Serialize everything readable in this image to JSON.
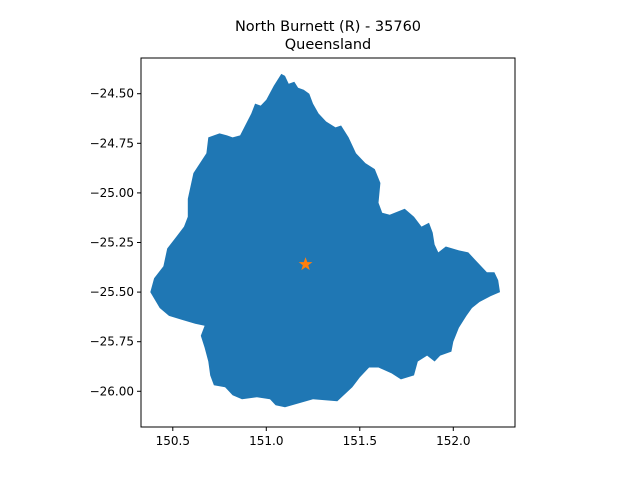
{
  "title": {
    "line1": "North Burnett (R) - 35760",
    "line2": "Queensland"
  },
  "colors": {
    "region_fill": "#1f77b4",
    "marker_fill": "#ff7f0e",
    "axis": "#000000",
    "background": "#ffffff"
  },
  "chart_data": {
    "type": "map",
    "region_name": "North Burnett (R)",
    "region_code": "35760",
    "state": "Queensland",
    "xlim": [
      150.33,
      152.33
    ],
    "ylim": [
      -26.18,
      -24.32
    ],
    "x_ticks": [
      {
        "value": 150.5,
        "label": "150.5"
      },
      {
        "value": 151.0,
        "label": "151.0"
      },
      {
        "value": 151.5,
        "label": "151.5"
      },
      {
        "value": 152.0,
        "label": "152.0"
      }
    ],
    "y_ticks": [
      {
        "value": -24.5,
        "label": "−24.50"
      },
      {
        "value": -24.75,
        "label": "−24.75"
      },
      {
        "value": -25.0,
        "label": "−25.00"
      },
      {
        "value": -25.25,
        "label": "−25.25"
      },
      {
        "value": -25.5,
        "label": "−25.50"
      },
      {
        "value": -25.75,
        "label": "−25.75"
      },
      {
        "value": -26.0,
        "label": "−26.00"
      }
    ],
    "marker": {
      "shape": "star",
      "lon": 151.21,
      "lat": -25.36
    },
    "boundary": [
      [
        151.08,
        -24.4
      ],
      [
        151.1,
        -24.41
      ],
      [
        151.12,
        -24.45
      ],
      [
        151.15,
        -24.44
      ],
      [
        151.17,
        -24.47
      ],
      [
        151.2,
        -24.48
      ],
      [
        151.23,
        -24.5
      ],
      [
        151.25,
        -24.55
      ],
      [
        151.28,
        -24.6
      ],
      [
        151.32,
        -24.64
      ],
      [
        151.37,
        -24.67
      ],
      [
        151.4,
        -24.66
      ],
      [
        151.44,
        -24.72
      ],
      [
        151.48,
        -24.8
      ],
      [
        151.5,
        -24.82
      ],
      [
        151.53,
        -24.85
      ],
      [
        151.58,
        -24.88
      ],
      [
        151.61,
        -24.95
      ],
      [
        151.6,
        -25.05
      ],
      [
        151.62,
        -25.1
      ],
      [
        151.66,
        -25.11
      ],
      [
        151.74,
        -25.08
      ],
      [
        151.79,
        -25.12
      ],
      [
        151.83,
        -25.17
      ],
      [
        151.87,
        -25.15
      ],
      [
        151.89,
        -25.2
      ],
      [
        151.9,
        -25.26
      ],
      [
        151.92,
        -25.3
      ],
      [
        151.96,
        -25.27
      ],
      [
        152.03,
        -25.29
      ],
      [
        152.08,
        -25.3
      ],
      [
        152.12,
        -25.34
      ],
      [
        152.18,
        -25.4
      ],
      [
        152.22,
        -25.4
      ],
      [
        152.24,
        -25.44
      ],
      [
        152.25,
        -25.5
      ],
      [
        152.2,
        -25.52
      ],
      [
        152.14,
        -25.55
      ],
      [
        152.1,
        -25.58
      ],
      [
        152.07,
        -25.62
      ],
      [
        152.03,
        -25.68
      ],
      [
        152.0,
        -25.75
      ],
      [
        151.99,
        -25.8
      ],
      [
        151.93,
        -25.82
      ],
      [
        151.9,
        -25.85
      ],
      [
        151.86,
        -25.82
      ],
      [
        151.81,
        -25.85
      ],
      [
        151.79,
        -25.92
      ],
      [
        151.72,
        -25.94
      ],
      [
        151.67,
        -25.91
      ],
      [
        151.6,
        -25.88
      ],
      [
        151.55,
        -25.88
      ],
      [
        151.5,
        -25.93
      ],
      [
        151.46,
        -25.98
      ],
      [
        151.38,
        -26.05
      ],
      [
        151.25,
        -26.04
      ],
      [
        151.1,
        -26.08
      ],
      [
        151.05,
        -26.07
      ],
      [
        151.02,
        -26.04
      ],
      [
        150.95,
        -26.03
      ],
      [
        150.87,
        -26.04
      ],
      [
        150.82,
        -26.02
      ],
      [
        150.78,
        -25.98
      ],
      [
        150.72,
        -25.97
      ],
      [
        150.7,
        -25.92
      ],
      [
        150.69,
        -25.85
      ],
      [
        150.67,
        -25.78
      ],
      [
        150.65,
        -25.72
      ],
      [
        150.67,
        -25.67
      ],
      [
        150.62,
        -25.66
      ],
      [
        150.55,
        -25.64
      ],
      [
        150.48,
        -25.62
      ],
      [
        150.43,
        -25.58
      ],
      [
        150.38,
        -25.5
      ],
      [
        150.4,
        -25.43
      ],
      [
        150.45,
        -25.37
      ],
      [
        150.47,
        -25.28
      ],
      [
        150.52,
        -25.22
      ],
      [
        150.56,
        -25.17
      ],
      [
        150.58,
        -25.12
      ],
      [
        150.58,
        -25.03
      ],
      [
        150.61,
        -24.9
      ],
      [
        150.68,
        -24.8
      ],
      [
        150.69,
        -24.72
      ],
      [
        150.75,
        -24.7
      ],
      [
        150.79,
        -24.71
      ],
      [
        150.82,
        -24.72
      ],
      [
        150.86,
        -24.71
      ],
      [
        150.92,
        -24.6
      ],
      [
        150.94,
        -24.55
      ],
      [
        150.97,
        -24.56
      ],
      [
        151.0,
        -24.53
      ],
      [
        151.04,
        -24.46
      ]
    ]
  }
}
